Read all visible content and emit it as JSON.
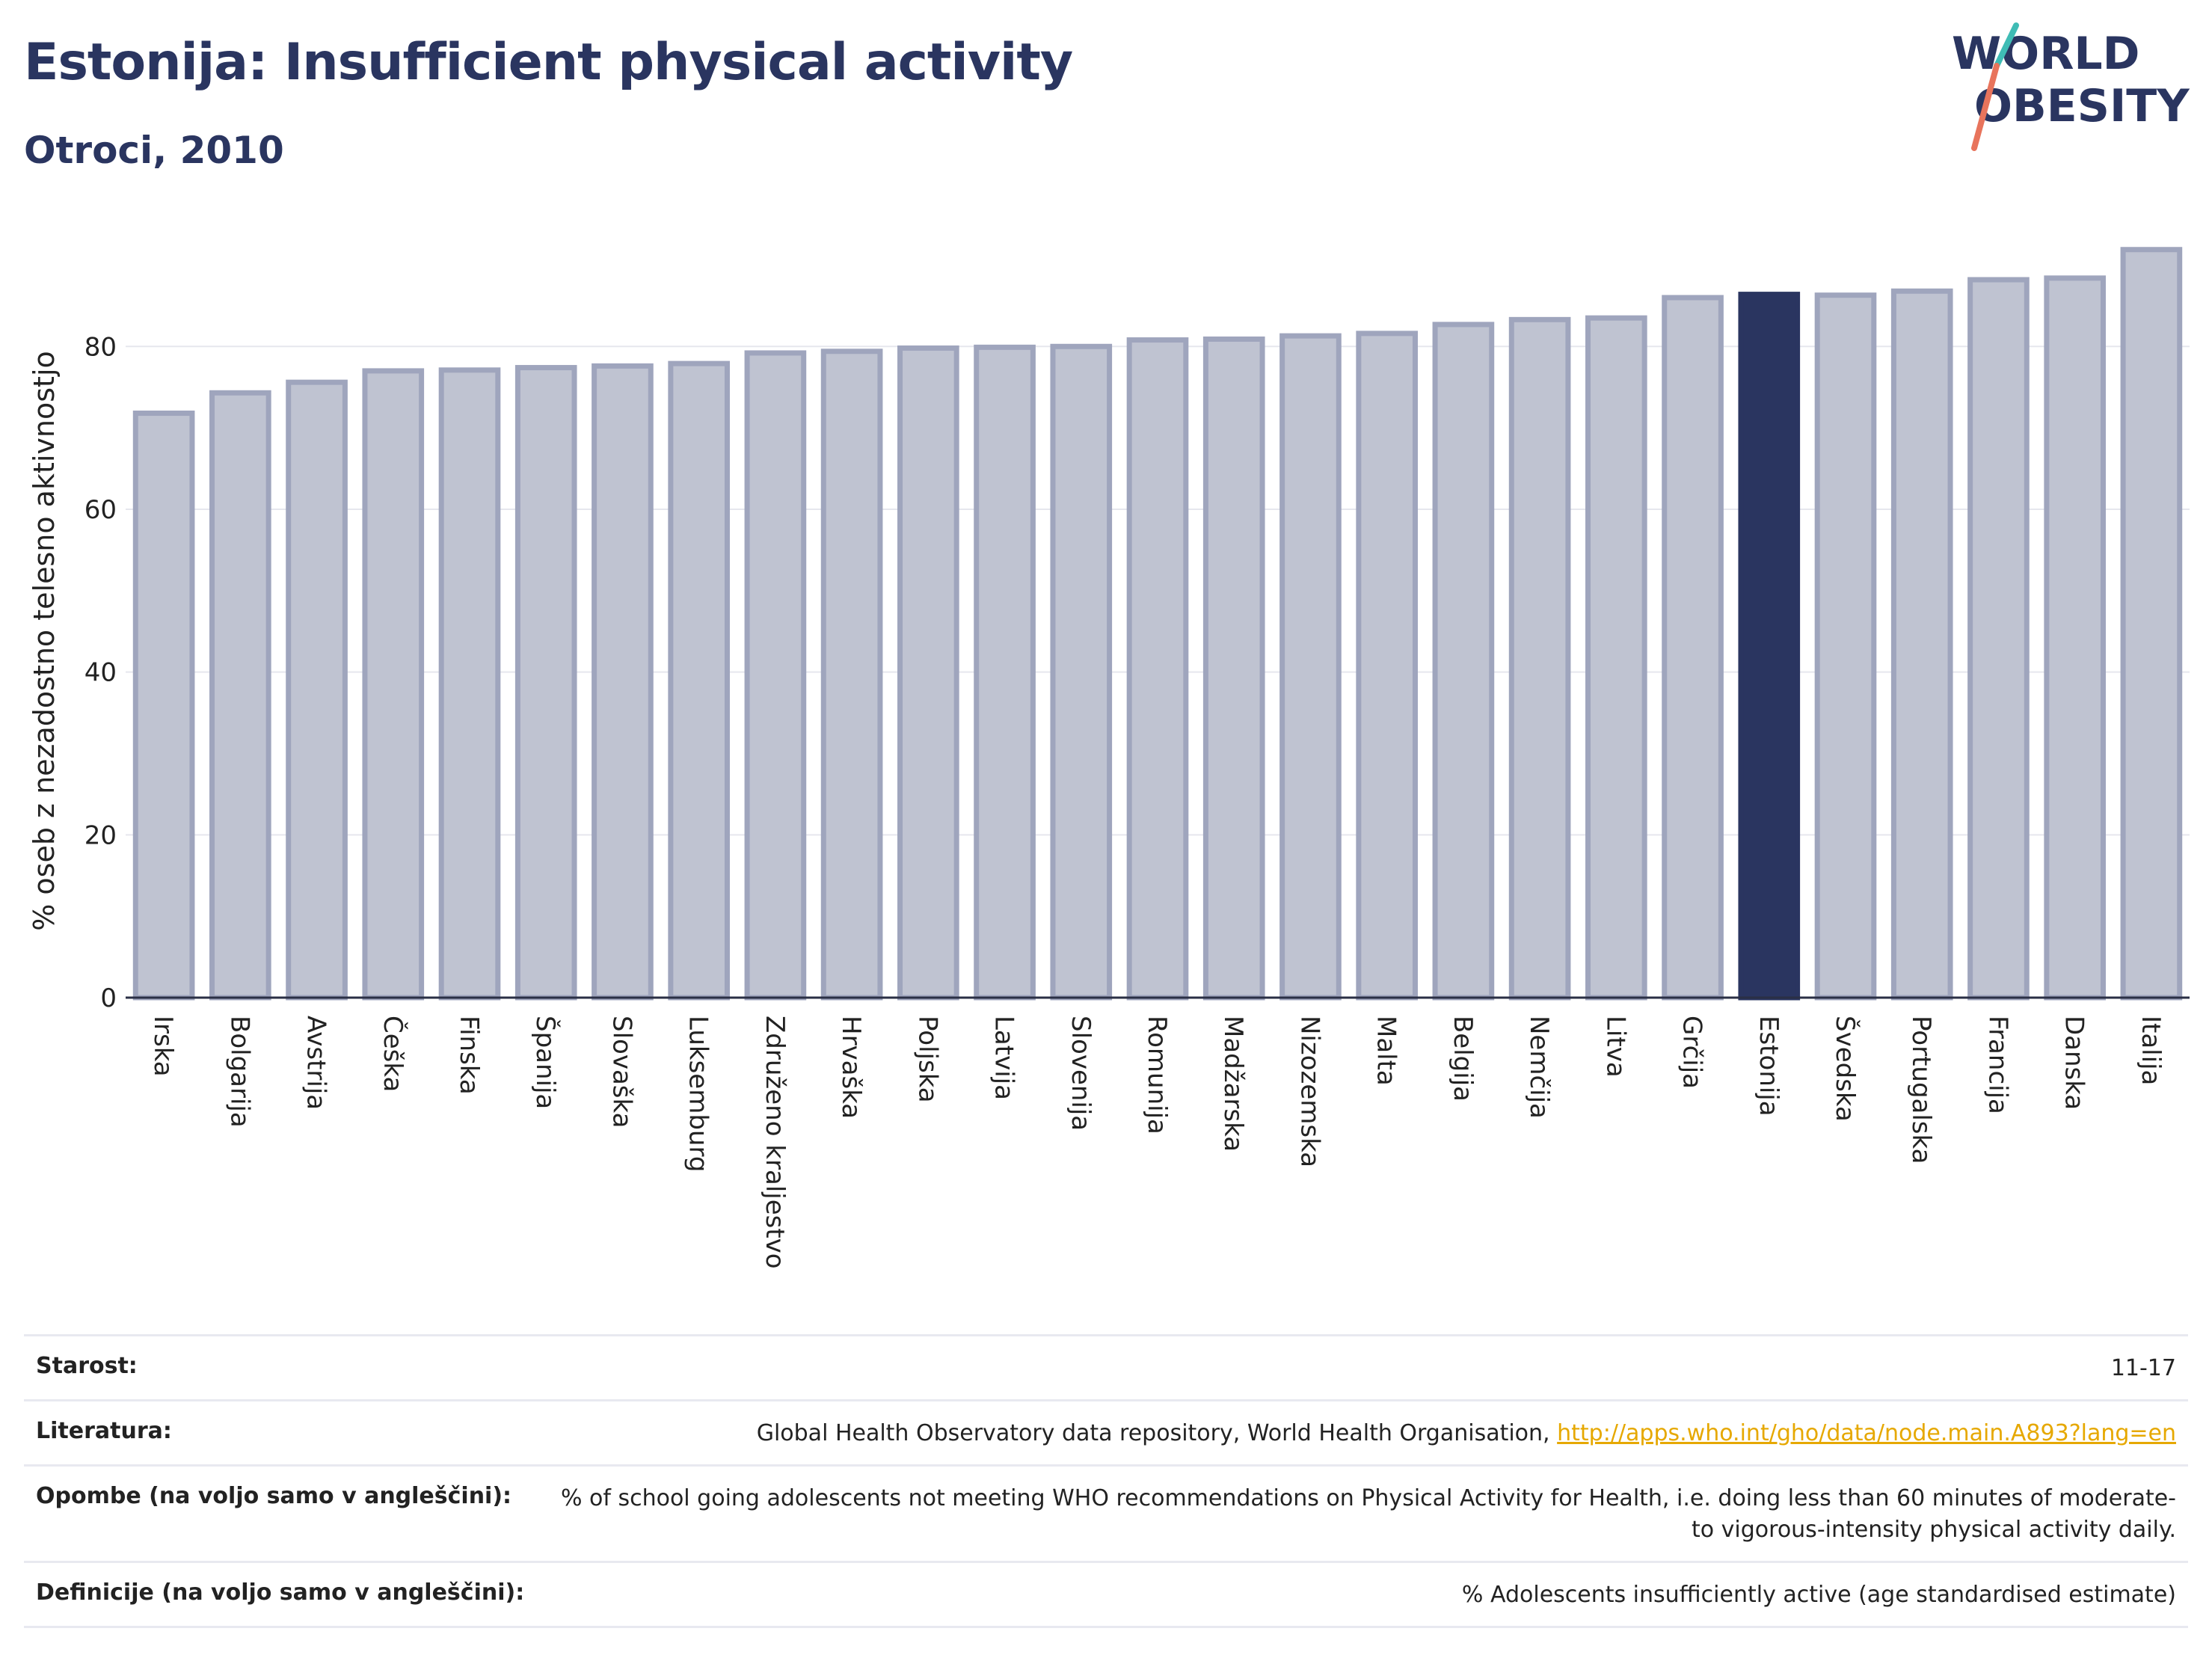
{
  "header": {
    "title": "Estonija: Insufficient physical activity",
    "subtitle": "Otroci, 2010"
  },
  "logo": {
    "line1": "WORLD",
    "line2": "OBESITY"
  },
  "colors": {
    "bar": "#bfc3d1",
    "bar_border": "#9fa5bd",
    "highlight": "#2a3560",
    "accent_teal": "#3fbcb5",
    "accent_red": "#e8745c"
  },
  "chart_data": {
    "type": "bar",
    "title": "Estonija: Insufficient physical activity",
    "subtitle": "Otroci, 2010",
    "ylabel": "% oseb z nezadostno telesno aktivnostjo",
    "xlabel": "",
    "ylim": [
      0,
      95
    ],
    "yticks": [
      0,
      20,
      40,
      60,
      80
    ],
    "grid": true,
    "highlight": "Estonija",
    "categories": [
      "Irska",
      "Bolgarija",
      "Avstrija",
      "Češka",
      "Finska",
      "Španija",
      "Slovaška",
      "Luksemburg",
      "Združeno kraljestvo",
      "Hrvaška",
      "Poljska",
      "Latvija",
      "Slovenija",
      "Romunija",
      "Madžarska",
      "Nizozemska",
      "Malta",
      "Belgija",
      "Nemčija",
      "Litva",
      "Grčija",
      "Estonija",
      "Švedska",
      "Portugalska",
      "Francija",
      "Danska",
      "Italija"
    ],
    "values": [
      71.8,
      74.3,
      75.6,
      77.0,
      77.1,
      77.4,
      77.6,
      77.9,
      79.2,
      79.4,
      79.8,
      79.9,
      80.0,
      80.8,
      80.9,
      81.3,
      81.6,
      82.7,
      83.3,
      83.5,
      86.0,
      86.4,
      86.3,
      86.8,
      88.2,
      88.4,
      91.9
    ]
  },
  "info": {
    "age": {
      "label": "Starost:",
      "value": "11-17"
    },
    "references": {
      "label": "Literatura:",
      "value": "Global Health Observatory data repository, World Health Organisation,",
      "link": "http://apps.who.int/gho/data/node.main.A893?lang=en"
    },
    "notes": {
      "label": "Opombe (na voljo samo v angleščini):",
      "value": "% of school going adolescents not meeting WHO recommendations on Physical Activity for Health, i.e. doing less than 60 minutes of moderate- to vigorous-intensity physical activity daily."
    },
    "definitions": {
      "label": "Definicije (na voljo samo v angleščini):",
      "value": "% Adolescents insufficiently active (age standardised estimate)"
    }
  }
}
